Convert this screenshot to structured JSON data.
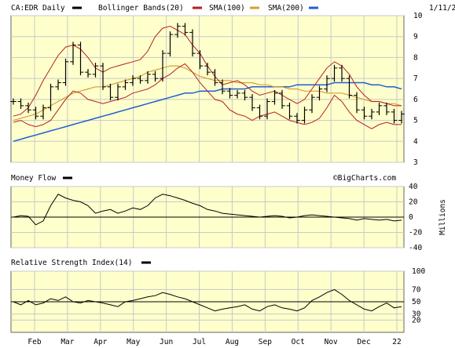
{
  "header": {
    "symbol_label": "CA:EDR Daily",
    "bollinger_label": "Bollinger Bands(20)",
    "sma100_label": "SMA(100)",
    "sma200_label": "SMA(200)",
    "date": "1/11/22"
  },
  "panels": {
    "money_flow_title": "Money Flow",
    "money_flow_unit": "Millions",
    "rsi_title": "Relative Strength Index(14)",
    "watermark": "©BigCharts.com"
  },
  "colors": {
    "background": "#ffffcc",
    "price": "#000000",
    "bollinger": "#b22222",
    "sma100": "#d4a030",
    "sma200": "#1e5fd6"
  },
  "chart_data": [
    {
      "type": "ohlc",
      "title": "CA:EDR Daily",
      "x_ticks": [
        "Feb",
        "Mar",
        "Apr",
        "May",
        "Jun",
        "Jul",
        "Aug",
        "Sep",
        "Oct",
        "Nov",
        "Dec",
        "22"
      ],
      "ylim": [
        3,
        10
      ],
      "y_ticks": [
        3,
        4,
        5,
        6,
        7,
        8,
        9,
        10
      ],
      "grid": true,
      "legend": "top",
      "series": [
        {
          "name": "CA:EDR Daily",
          "values": [
            5.9,
            5.7,
            5.5,
            5.2,
            5.6,
            6.6,
            6.8,
            7.8,
            8.6,
            7.3,
            7.2,
            7.6,
            6.6,
            6.1,
            6.6,
            6.8,
            7.0,
            6.9,
            7.2,
            7.0,
            8.2,
            9.1,
            9.5,
            9.2,
            8.2,
            7.6,
            7.3,
            6.8,
            6.4,
            6.2,
            6.3,
            6.1,
            5.6,
            5.2,
            5.9,
            6.3,
            5.7,
            5.2,
            5.0,
            5.5,
            6.1,
            6.5,
            7.0,
            7.5,
            7.0,
            6.2,
            5.5,
            5.2,
            5.4,
            5.7,
            5.4,
            5.0,
            5.3
          ]
        },
        {
          "name": "Bollinger Bands(20)",
          "values": [
            5.2,
            5.3,
            5.6,
            6.2,
            6.9,
            7.5,
            8.1,
            8.5,
            8.6,
            8.4,
            8.0,
            7.5,
            7.3,
            7.5,
            7.6,
            7.7,
            7.8,
            7.9,
            8.3,
            9.0,
            9.4,
            9.5,
            9.3,
            9.1,
            8.6,
            8.2,
            7.6,
            7.1,
            6.7,
            6.8,
            6.9,
            6.7,
            6.4,
            6.2,
            6.3,
            6.4,
            6.2,
            6.0,
            5.8,
            6.0,
            6.5,
            7.0,
            7.5,
            7.8,
            7.6,
            7.2,
            6.6,
            6.2,
            5.9,
            5.9,
            5.8,
            5.7,
            5.7
          ]
        },
        {
          "name": "Bollinger Bands(20)",
          "values": [
            4.9,
            5.0,
            4.8,
            4.7,
            4.8,
            5.0,
            5.5,
            6.0,
            6.4,
            6.3,
            6.0,
            5.9,
            5.8,
            5.9,
            6.0,
            6.1,
            6.3,
            6.4,
            6.5,
            6.7,
            7.0,
            7.2,
            7.5,
            7.7,
            7.3,
            6.8,
            6.4,
            6.0,
            5.9,
            5.5,
            5.3,
            5.2,
            5.0,
            5.2,
            5.3,
            5.4,
            5.2,
            5.0,
            4.9,
            4.8,
            4.9,
            5.1,
            5.6,
            6.2,
            5.9,
            5.4,
            5.0,
            4.8,
            4.6,
            4.8,
            4.9,
            4.8,
            4.8
          ]
        },
        {
          "name": "SMA(100)",
          "values": [
            5.0,
            5.1,
            5.2,
            5.3,
            5.5,
            5.7,
            5.9,
            6.1,
            6.3,
            6.4,
            6.5,
            6.6,
            6.6,
            6.7,
            6.8,
            6.9,
            7.0,
            7.1,
            7.3,
            7.4,
            7.5,
            7.6,
            7.6,
            7.5,
            7.3,
            7.1,
            7.0,
            6.9,
            6.9,
            6.9,
            6.8,
            6.8,
            6.8,
            6.7,
            6.7,
            6.6,
            6.6,
            6.5,
            6.5,
            6.4,
            6.4,
            6.4,
            6.3,
            6.3,
            6.3,
            6.2,
            6.1,
            6.0,
            5.9,
            5.9,
            5.8,
            5.8,
            5.7
          ]
        },
        {
          "name": "SMA(200)",
          "values": [
            4.0,
            4.1,
            4.2,
            4.3,
            4.4,
            4.5,
            4.6,
            4.7,
            4.8,
            4.9,
            5.0,
            5.1,
            5.2,
            5.3,
            5.4,
            5.5,
            5.6,
            5.7,
            5.8,
            5.9,
            6.0,
            6.1,
            6.2,
            6.3,
            6.3,
            6.4,
            6.4,
            6.4,
            6.5,
            6.5,
            6.5,
            6.5,
            6.6,
            6.6,
            6.6,
            6.6,
            6.6,
            6.6,
            6.7,
            6.7,
            6.7,
            6.7,
            6.7,
            6.8,
            6.8,
            6.8,
            6.8,
            6.8,
            6.7,
            6.7,
            6.6,
            6.6,
            6.5
          ]
        }
      ]
    },
    {
      "type": "line",
      "title": "Money Flow",
      "ylabel": "Millions",
      "ylim": [
        -40,
        40
      ],
      "y_ticks": [
        -40,
        -20,
        0,
        20,
        40
      ],
      "reference_line": 0,
      "series": [
        {
          "name": "Money Flow",
          "values": [
            0,
            2,
            1,
            -10,
            -5,
            15,
            30,
            25,
            22,
            20,
            15,
            5,
            8,
            10,
            5,
            8,
            12,
            10,
            15,
            25,
            30,
            28,
            25,
            22,
            18,
            15,
            10,
            8,
            5,
            4,
            3,
            2,
            1,
            0,
            1,
            2,
            1,
            -1,
            0,
            2,
            3,
            2,
            1,
            0,
            -1,
            -2,
            -4,
            -2,
            -3,
            -4,
            -3,
            -5,
            -4
          ]
        }
      ]
    },
    {
      "type": "line",
      "title": "Relative Strength Index(14)",
      "ylim": [
        0,
        100
      ],
      "y_ticks": [
        20,
        30,
        50,
        70,
        100
      ],
      "reference_line": 50,
      "series": [
        {
          "name": "Relative Strength Index(14)",
          "values": [
            50,
            45,
            52,
            45,
            48,
            55,
            52,
            58,
            50,
            48,
            52,
            50,
            48,
            45,
            42,
            50,
            52,
            55,
            58,
            60,
            65,
            62,
            58,
            55,
            50,
            45,
            40,
            35,
            38,
            40,
            42,
            45,
            38,
            35,
            42,
            45,
            40,
            38,
            35,
            40,
            52,
            58,
            65,
            70,
            62,
            52,
            45,
            38,
            35,
            42,
            48,
            40,
            42
          ]
        }
      ]
    }
  ]
}
